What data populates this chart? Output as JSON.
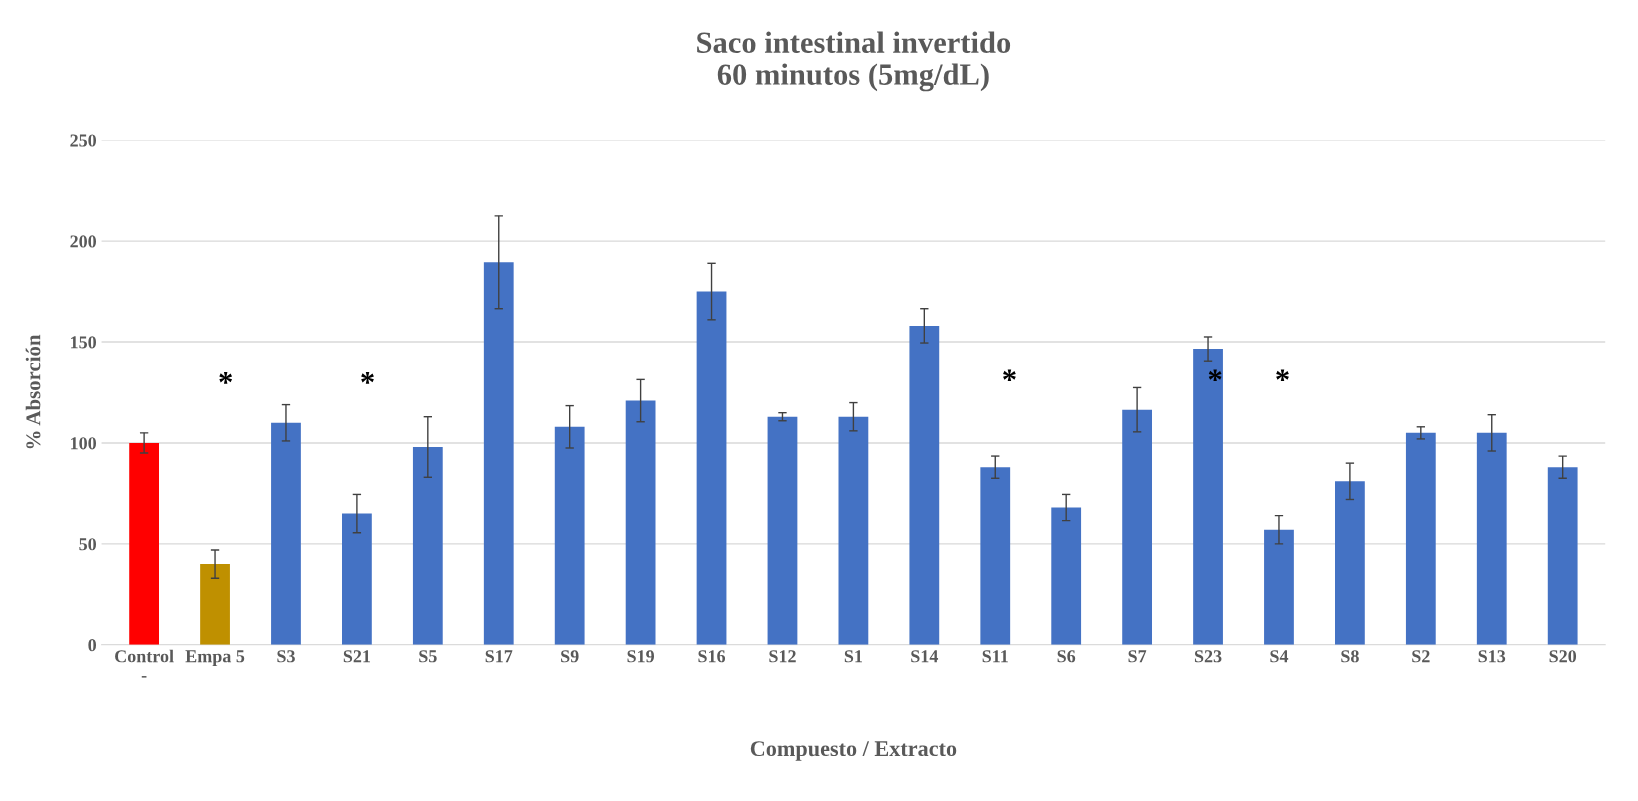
{
  "chart_data": {
    "type": "bar",
    "title": "Saco intestinal invertido\n60 minutos (5mg/dL)",
    "xlabel": "Compuesto / Extracto",
    "ylabel": "% Absorción",
    "categories": [
      "Control\n-",
      "Empa 5",
      "S3",
      "S21",
      "S5",
      "S17",
      "S9",
      "S19",
      "S16",
      "S12",
      "S1",
      "S14",
      "S11",
      "S6",
      "S7",
      "S23",
      "S4",
      "S8",
      "S2",
      "S13",
      "S20"
    ],
    "values": [
      100,
      40,
      110,
      65,
      98,
      189.5,
      108,
      121,
      175,
      113,
      113,
      158,
      88,
      68,
      116.5,
      146.5,
      57,
      81,
      105,
      105,
      88
    ],
    "errors": [
      5,
      7,
      9,
      9.5,
      15,
      23,
      10.5,
      10.5,
      14,
      2,
      7,
      8.5,
      5.5,
      6.5,
      11,
      6,
      7,
      9,
      3,
      9,
      5.5
    ],
    "colors": [
      "#ff0000",
      "#bf9000",
      "#4472c4",
      "#4472c4",
      "#4472c4",
      "#4472c4",
      "#4472c4",
      "#4472c4",
      "#4472c4",
      "#4472c4",
      "#4472c4",
      "#4472c4",
      "#4472c4",
      "#4472c4",
      "#4472c4",
      "#4472c4",
      "#4472c4",
      "#4472c4",
      "#4472c4",
      "#4472c4",
      "#4472c4"
    ],
    "ylim": [
      0,
      250
    ],
    "yticks": [
      0,
      50,
      100,
      150,
      200,
      250
    ],
    "grid": "y",
    "legend": false,
    "annotations": [
      "*",
      "*",
      "*",
      "*",
      "*"
    ]
  }
}
